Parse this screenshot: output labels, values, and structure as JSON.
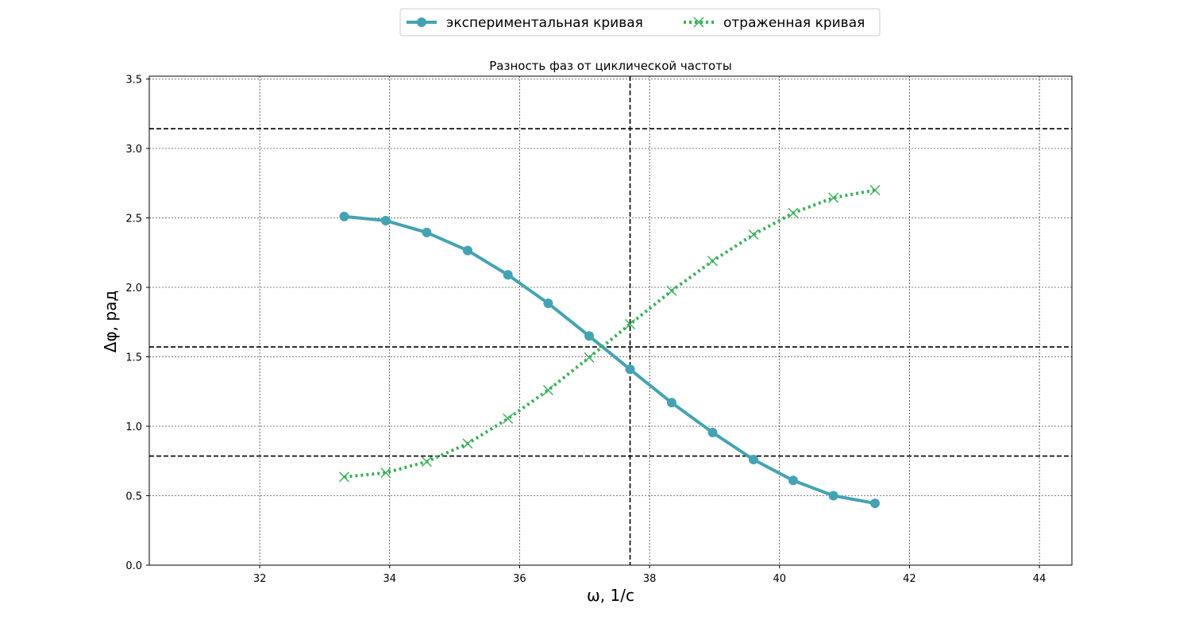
{
  "chart_data": {
    "type": "line",
    "title": "Разность фаз от циклической частоты",
    "xlabel": "ω, 1/с",
    "ylabel": "Δφ, рад",
    "xlim": [
      30.3,
      44.5
    ],
    "ylim": [
      0,
      3.52
    ],
    "xticks": [
      32,
      34,
      36,
      38,
      40,
      42,
      44
    ],
    "yticks": [
      0.0,
      0.5,
      1.0,
      1.5,
      2.0,
      2.5,
      3.0,
      3.5
    ],
    "grid": true,
    "legend_position": "top-center, outside plot",
    "reference_lines": {
      "horizontal": [
        3.1416,
        1.5708,
        0.7854
      ],
      "vertical": [
        37.7
      ]
    },
    "series": [
      {
        "name": "экспериментальная кривая",
        "color": "#44a3b3",
        "style": "solid",
        "marker": "circle",
        "x": [
          33.3,
          33.94,
          34.57,
          35.2,
          35.82,
          36.44,
          37.07,
          37.7,
          38.34,
          38.97,
          39.6,
          40.21,
          40.83,
          41.47
        ],
        "y": [
          2.51,
          2.48,
          2.395,
          2.265,
          2.09,
          1.885,
          1.65,
          1.41,
          1.17,
          0.955,
          0.76,
          0.61,
          0.5,
          0.445
        ]
      },
      {
        "name": "отраженная кривая",
        "color": "#3cb05a",
        "style": "dotted",
        "marker": "x",
        "x": [
          33.3,
          33.94,
          34.57,
          35.2,
          35.82,
          36.44,
          37.07,
          37.7,
          38.34,
          38.97,
          39.6,
          40.21,
          40.83,
          41.47
        ],
        "y": [
          0.635,
          0.665,
          0.745,
          0.875,
          1.055,
          1.26,
          1.495,
          1.735,
          1.975,
          2.19,
          2.38,
          2.535,
          2.645,
          2.7
        ]
      }
    ]
  }
}
